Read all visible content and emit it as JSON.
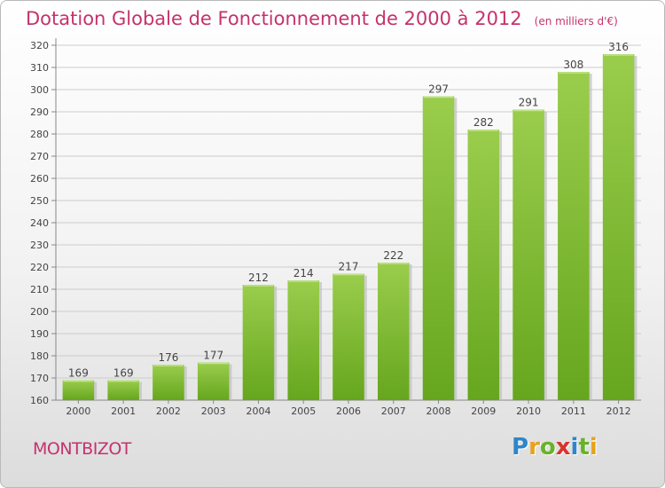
{
  "header": {
    "title": "Dotation Globale de Fonctionnement de 2000 à 2012",
    "subtitle": "(en milliers d'€)"
  },
  "footer": {
    "commune": "MONTBIZOT",
    "logo_text": "Proxiti",
    "logo_colors": [
      "#2f86c9",
      "#e8a21c",
      "#69b22b",
      "#d8342b",
      "#2f86c9",
      "#69b22b",
      "#e8a21c"
    ]
  },
  "colors": {
    "bar_top": "#9acd4c",
    "bar_bottom": "#66a61e",
    "bar_shadow": "#bfbfbf",
    "grid": "#cccccc",
    "text": "#444444"
  },
  "chart_data": {
    "type": "bar",
    "categories": [
      "2000",
      "2001",
      "2002",
      "2003",
      "2004",
      "2005",
      "2006",
      "2007",
      "2008",
      "2009",
      "2010",
      "2011",
      "2012"
    ],
    "values": [
      169,
      169,
      176,
      177,
      212,
      214,
      217,
      222,
      297,
      282,
      291,
      308,
      316
    ],
    "ylim": [
      160,
      320
    ],
    "yticks": [
      160,
      170,
      180,
      190,
      200,
      210,
      220,
      230,
      240,
      250,
      260,
      270,
      280,
      290,
      300,
      310,
      320
    ],
    "grid": true,
    "data_labels": true
  }
}
